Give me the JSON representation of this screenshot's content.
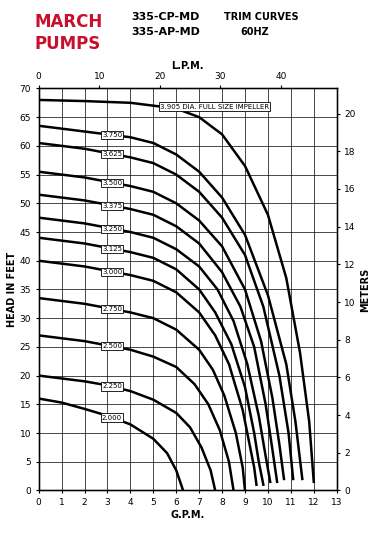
{
  "chart_data": {
    "type": "line",
    "title": "TRIM CURVES",
    "subtitle": "60HZ",
    "annotations": [
      "MARCH",
      "PUMPS",
      "335-CP-MD",
      "335-AP-MD"
    ],
    "x_label": "G.P.M.",
    "x2_label": "L.P.M.",
    "y_label": "HEAD IN FEET",
    "y2_label": "METERS",
    "xlim": [
      0,
      13
    ],
    "xticks": [
      0,
      1,
      2,
      3,
      4,
      5,
      6,
      7,
      8,
      9,
      10,
      11,
      12,
      13
    ],
    "x2lim": [
      0,
      49.21
    ],
    "x2ticks": [
      0,
      10,
      20,
      30,
      40
    ],
    "ylim": [
      0,
      70
    ],
    "yticks": [
      0,
      5,
      10,
      15,
      20,
      25,
      30,
      35,
      40,
      45,
      50,
      55,
      60,
      65,
      70
    ],
    "y2lim": [
      0,
      21.336
    ],
    "y2ticks": [
      0,
      2,
      4,
      6,
      8,
      10,
      12,
      14,
      16,
      18,
      20
    ],
    "grid": true,
    "series": [
      {
        "name": "3.905 DIA. FULL SIZE IMPELLER",
        "color": "#000000",
        "x": [
          0,
          2,
          4,
          6,
          7,
          8,
          9,
          10,
          10.8,
          11.4,
          11.8,
          12.0
        ],
        "values": [
          68,
          67.8,
          67.5,
          66.5,
          65,
          62,
          56.5,
          48,
          37,
          24,
          12,
          1.5
        ]
      },
      {
        "name": "3.750",
        "color": "#000000",
        "x": [
          0,
          2,
          4,
          5,
          6,
          7,
          8,
          9,
          10,
          10.8,
          11.2,
          11.5
        ],
        "values": [
          63.5,
          62.5,
          61.5,
          60.5,
          58.5,
          55.5,
          51,
          44.5,
          34,
          22,
          12,
          2
        ]
      },
      {
        "name": "3.625",
        "color": "#000000",
        "x": [
          0,
          2,
          4,
          5,
          6,
          7,
          8,
          9,
          9.8,
          10.5,
          10.9,
          11.1
        ],
        "values": [
          60.5,
          59.5,
          58,
          57,
          55,
          52,
          47.5,
          41,
          32,
          20,
          10,
          2
        ]
      },
      {
        "name": "3.500",
        "color": "#000000",
        "x": [
          0,
          2,
          4,
          5,
          6,
          7,
          8,
          9,
          9.7,
          10.2,
          10.5,
          10.7
        ],
        "values": [
          55.5,
          54.5,
          53,
          52,
          50,
          47,
          42.5,
          35,
          26,
          16,
          8,
          2
        ]
      },
      {
        "name": "3.375",
        "color": "#000000",
        "x": [
          0,
          2,
          4,
          5,
          6,
          7,
          8,
          8.8,
          9.4,
          9.9,
          10.2,
          10.4
        ],
        "values": [
          51.5,
          50.5,
          49,
          48,
          46,
          43,
          38,
          32,
          25,
          15,
          7,
          1.5
        ]
      },
      {
        "name": "3.250",
        "color": "#000000",
        "x": [
          0,
          2,
          4,
          5,
          6,
          7,
          7.8,
          8.5,
          9.1,
          9.6,
          9.9,
          10.1
        ],
        "values": [
          47.5,
          46.5,
          45,
          44,
          42,
          39,
          35,
          29.5,
          22,
          13,
          6,
          1.5
        ]
      },
      {
        "name": "3.125",
        "color": "#000000",
        "x": [
          0,
          2,
          4,
          5,
          6,
          7,
          7.7,
          8.4,
          9.0,
          9.4,
          9.6,
          9.8
        ],
        "values": [
          44,
          43,
          41.5,
          40.5,
          38.5,
          35,
          31,
          25.5,
          18,
          10,
          5,
          1
        ]
      },
      {
        "name": "3.000",
        "color": "#000000",
        "x": [
          0,
          2,
          4,
          5,
          6,
          7,
          7.7,
          8.3,
          8.9,
          9.2,
          9.4,
          9.5
        ],
        "values": [
          40,
          39,
          37.5,
          36.5,
          34.5,
          31,
          27,
          22,
          14,
          8,
          4,
          1
        ]
      },
      {
        "name": "2.750",
        "color": "#000000",
        "x": [
          0,
          2,
          4,
          5,
          6,
          7,
          7.6,
          8.1,
          8.6,
          8.9,
          9.0
        ],
        "values": [
          33.5,
          32.5,
          31,
          30,
          28,
          24.5,
          21,
          16.5,
          10,
          4,
          0
        ]
      },
      {
        "name": "2.500",
        "color": "#000000",
        "x": [
          0,
          2,
          4,
          5,
          6,
          6.8,
          7.4,
          7.9,
          8.3,
          8.5
        ],
        "values": [
          27,
          26,
          24.5,
          23.3,
          21.5,
          18.5,
          15,
          10.5,
          5,
          0
        ]
      },
      {
        "name": "2.250",
        "color": "#000000",
        "x": [
          0,
          2,
          3,
          4,
          5,
          6,
          6.6,
          7.1,
          7.5,
          7.7
        ],
        "values": [
          20,
          19,
          18.3,
          17.3,
          15.8,
          13.5,
          11,
          7.5,
          3.5,
          0
        ]
      },
      {
        "name": "2.000",
        "color": "#000000",
        "x": [
          0,
          1,
          2,
          3,
          4,
          5,
          5.6,
          6.0,
          6.3
        ],
        "values": [
          16,
          15.3,
          14.2,
          13,
          11.5,
          9,
          6.5,
          3.5,
          0
        ]
      }
    ]
  }
}
